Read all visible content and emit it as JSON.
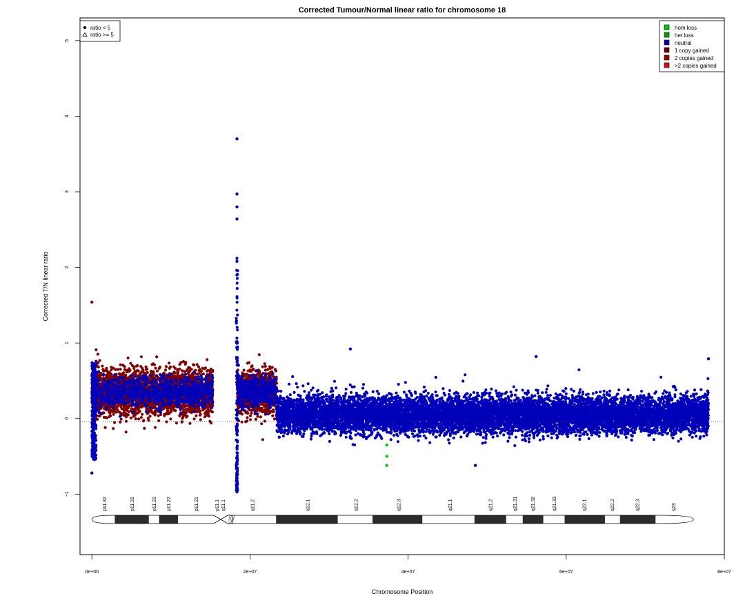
{
  "chart_data": {
    "type": "scatter",
    "title": "Corrected Tumour/Normal linear ratio for chromosome  18",
    "xlabel": "Chromosome Position",
    "ylabel": "Corrected T/N linear ratio",
    "xlim": [
      -1500000,
      80000000
    ],
    "ylim": [
      -1.8,
      5.3
    ],
    "x_ticks": [
      0,
      20000000,
      40000000,
      60000000,
      80000000
    ],
    "x_tick_labels": [
      "0e+00",
      "2e+07",
      "4e+07",
      "6e+07",
      "8e+07"
    ],
    "y_ticks": [
      -1,
      0,
      1,
      2,
      3,
      4,
      5
    ],
    "y_tick_labels": [
      "−1",
      "0",
      "1",
      "2",
      "3",
      "4",
      "5"
    ],
    "reference_line": {
      "y": 0,
      "style": "dotted"
    },
    "grid": false,
    "legend_shape": {
      "position": "top-left",
      "items": [
        {
          "symbol": "circle",
          "label": "ratio < 5"
        },
        {
          "symbol": "triangle",
          "label": "ratio >= 5"
        }
      ]
    },
    "legend_status": {
      "position": "top-right",
      "items": [
        {
          "label": "hom loss",
          "color": "#00cc00"
        },
        {
          "label": "het loss",
          "color": "#00a000"
        },
        {
          "label": "neutral",
          "color": "#0000b8"
        },
        {
          "label": "1 copy gained",
          "color": "#6b0000"
        },
        {
          "label": "2 copies gained",
          "color": "#9b0000"
        },
        {
          "label": ">2 copies gained",
          "color": "#d01010"
        }
      ]
    },
    "colors": {
      "gained": "#800000",
      "neutral": "#0000bb",
      "hom_loss": "#00cc00"
    },
    "segments": [
      {
        "status": "1 copy gained",
        "x_start": 0,
        "x_end": 15300000,
        "typical_range": [
          -0.2,
          0.9
        ],
        "noise_neutral_fraction": 0.25
      },
      {
        "status": "1 copy gained",
        "x_start": 18400000,
        "x_end": 23400000,
        "typical_range": [
          -0.2,
          0.9
        ],
        "noise_neutral_fraction": 0.35
      },
      {
        "status": "neutral",
        "x_start": 23400000,
        "x_end": 78000000,
        "typical_range": [
          -0.4,
          0.5
        ]
      }
    ],
    "notable_points": [
      {
        "x": 18350000,
        "y": 3.7,
        "status": "neutral"
      },
      {
        "x": 18350000,
        "y": 2.97,
        "status": "neutral"
      },
      {
        "x": 18350000,
        "y": 2.8,
        "status": "neutral"
      },
      {
        "x": 18350000,
        "y": 2.64,
        "status": "neutral"
      },
      {
        "x": 18350000,
        "y": 2.12,
        "status": "neutral"
      },
      {
        "x": 18350000,
        "y": 2.08,
        "status": "neutral"
      },
      {
        "x": 18350000,
        "y": 1.9,
        "status": "neutral"
      },
      {
        "x": 18350000,
        "y": -0.72,
        "status": "neutral"
      },
      {
        "x": 18350000,
        "y": -0.97,
        "status": "neutral"
      },
      {
        "x": 0,
        "y": 1.54,
        "status": "1 copy gained"
      },
      {
        "x": 0,
        "y": -0.72,
        "status": "neutral"
      },
      {
        "x": 32700000,
        "y": 0.92,
        "status": "neutral"
      },
      {
        "x": 48500000,
        "y": -0.62,
        "status": "neutral"
      },
      {
        "x": 56200000,
        "y": 0.82,
        "status": "neutral"
      },
      {
        "x": 78000000,
        "y": 0.79,
        "status": "neutral"
      },
      {
        "x": 37300000,
        "y": -0.35,
        "status": "hom loss"
      },
      {
        "x": 37300000,
        "y": -0.5,
        "status": "hom loss"
      },
      {
        "x": 37300000,
        "y": -0.62,
        "status": "hom loss"
      }
    ],
    "cytobands": [
      {
        "name": "p11.32",
        "start": 0,
        "end": 2900000,
        "stain": "white",
        "label_x": 1600000
      },
      {
        "name": "p11.31",
        "start": 2900000,
        "end": 7200000,
        "stain": "dark",
        "label_x": 5100000
      },
      {
        "name": "p11.23",
        "start": 7200000,
        "end": 8500000,
        "stain": "white",
        "label_x": 7900000
      },
      {
        "name": "p11.22",
        "start": 8500000,
        "end": 10900000,
        "stain": "dark",
        "label_x": 9700000
      },
      {
        "name": "p11.21",
        "start": 10900000,
        "end": 15400000,
        "stain": "white",
        "label_x": 13200000
      },
      {
        "name": "p11.1",
        "start": 15400000,
        "end": 17200000,
        "stain": "centromere",
        "label_x": 15800000
      },
      {
        "name": "q11.1",
        "start": 17200000,
        "end": 17800000,
        "stain": "stalk",
        "label_x": 16600000
      },
      {
        "name": "q11.2",
        "start": 17800000,
        "end": 23300000,
        "stain": "white",
        "label_x": 20300000
      },
      {
        "name": "q12.1",
        "start": 23300000,
        "end": 31100000,
        "stain": "dark",
        "label_x": 27300000
      },
      {
        "name": "q12.2",
        "start": 31100000,
        "end": 35500000,
        "stain": "white",
        "label_x": 33400000
      },
      {
        "name": "q12.3",
        "start": 35500000,
        "end": 41800000,
        "stain": "dark",
        "label_x": 38800000
      },
      {
        "name": "q21.1",
        "start": 41800000,
        "end": 48400000,
        "stain": "white",
        "label_x": 45300000
      },
      {
        "name": "q21.2",
        "start": 48400000,
        "end": 52400000,
        "stain": "dark",
        "label_x": 50400000
      },
      {
        "name": "q21.31",
        "start": 52400000,
        "end": 54500000,
        "stain": "white",
        "label_x": 53500000
      },
      {
        "name": "q21.32",
        "start": 54500000,
        "end": 57100000,
        "stain": "dark",
        "label_x": 55800000
      },
      {
        "name": "q21.33",
        "start": 57100000,
        "end": 59800000,
        "stain": "white",
        "label_x": 58500000
      },
      {
        "name": "q22.1",
        "start": 59800000,
        "end": 64900000,
        "stain": "dark",
        "label_x": 62300000
      },
      {
        "name": "q22.2",
        "start": 64900000,
        "end": 66800000,
        "stain": "white",
        "label_x": 65800000
      },
      {
        "name": "q22.3",
        "start": 66800000,
        "end": 71300000,
        "stain": "dark",
        "label_x": 69000000
      },
      {
        "name": "q23",
        "start": 71300000,
        "end": 76100000,
        "stain": "white",
        "label_x": 73600000
      }
    ]
  }
}
